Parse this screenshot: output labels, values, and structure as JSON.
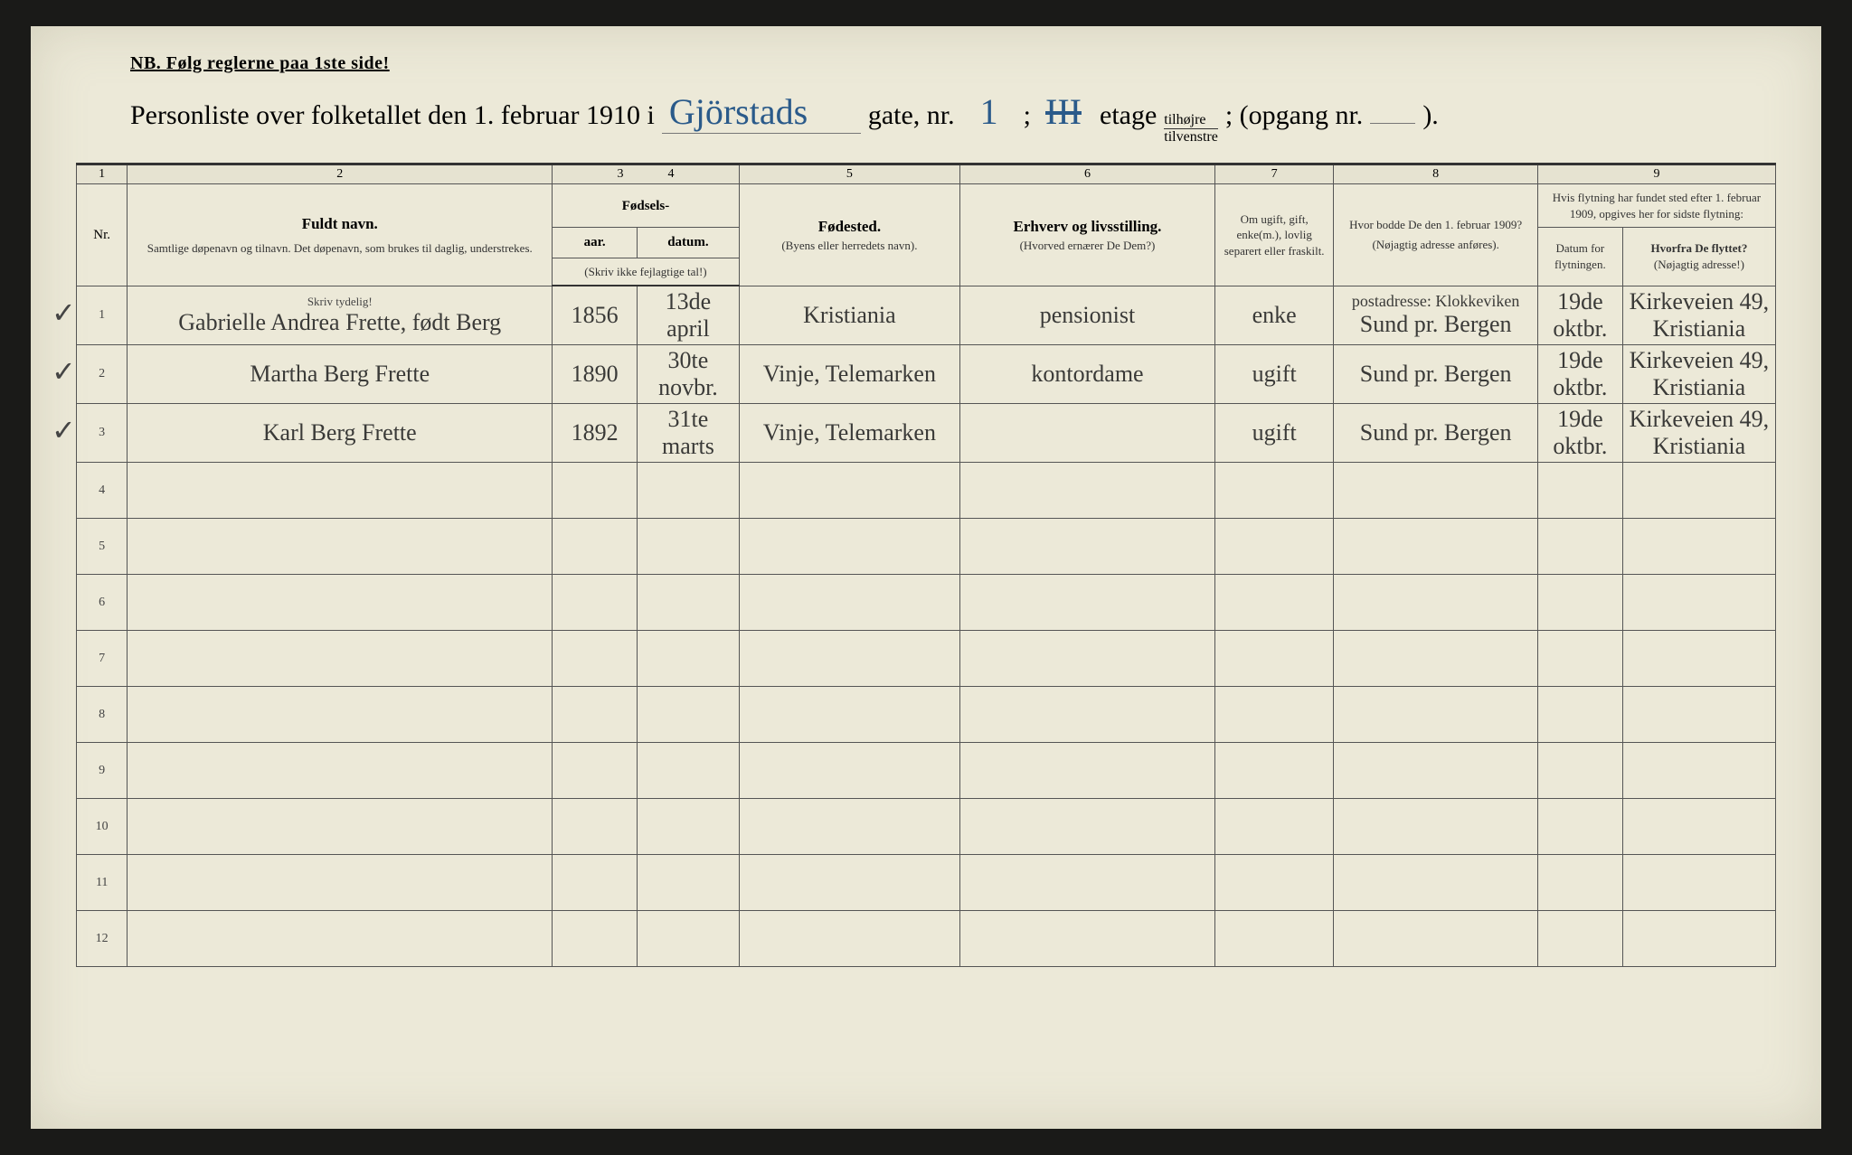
{
  "header": {
    "nb": "NB.  Følg reglerne paa 1ste side!",
    "title_prefix": "Personliste over folketallet den 1. februar 1910 i",
    "street": "Gjörstads",
    "gate_label": "gate, nr.",
    "nr": "1",
    "semicolon": ";",
    "etage_cross": "III",
    "etage_label": "etage",
    "tilhoire": "tilhøjre",
    "tilvenstre": "tilvenstre",
    "opgang": "; (opgang nr.",
    "close": ")."
  },
  "colnums": [
    "1",
    "2",
    "3",
    "4",
    "5",
    "6",
    "7",
    "8",
    "9"
  ],
  "columns": {
    "nr": "Nr.",
    "fuldt_navn": "Fuldt navn.",
    "fuldt_sub": "Samtlige døpenavn og tilnavn. Det døpenavn, som brukes til daglig, understrekes.",
    "fodsels": "Fødsels-",
    "aar": "aar.",
    "datum": "datum.",
    "skriv_ikke": "(Skriv ikke fejlagtige tal!)",
    "fodested": "Fødested.",
    "fodested_sub": "(Byens eller herredets navn).",
    "erhverv": "Erhverv og livsstilling.",
    "erhverv_sub": "(Hvorved ernærer De Dem?)",
    "om_ugift": "Om ugift, gift, enke(m.), lovlig separert eller fraskilt.",
    "hvor_bodde": "Hvor bodde De den 1. februar 1909?",
    "hvor_sub": "(Nøjagtig adresse anføres).",
    "hvis_flytning": "Hvis flytning har fundet sted efter 1. februar 1909, opgives her for sidste flytning:",
    "datum_flyt": "Datum for flytningen.",
    "hvorfra": "Hvorfra De flyttet?",
    "hvorfra_sub": "(Nøjagtig adresse!)",
    "skriv_tydelig": "Skriv tydelig!"
  },
  "rows": [
    {
      "nr": "1",
      "navn": "Gabrielle Andrea Frette, født Berg",
      "aar": "1856",
      "datum": "13de april",
      "fodested": "Kristiania",
      "erhverv": "pensionist",
      "ugift": "enke",
      "bodde_top": "postadresse: Klokkeviken",
      "bodde": "Sund pr. Bergen",
      "flyt_dat": "19de oktbr.",
      "hvorfra": "Kirkeveien 49, Kristiania"
    },
    {
      "nr": "2",
      "navn": "Martha Berg Frette",
      "aar": "1890",
      "datum": "30te novbr.",
      "fodested": "Vinje, Telemarken",
      "erhverv": "kontordame",
      "ugift": "ugift",
      "bodde_top": "",
      "bodde": "Sund pr. Bergen",
      "flyt_dat": "19de oktbr.",
      "hvorfra": "Kirkeveien 49, Kristiania"
    },
    {
      "nr": "3",
      "navn": "Karl Berg Frette",
      "aar": "1892",
      "datum": "31te marts",
      "fodested": "Vinje, Telemarken",
      "erhverv": "",
      "ugift": "ugift",
      "bodde_top": "",
      "bodde": "Sund pr. Bergen",
      "flyt_dat": "19de oktbr.",
      "hvorfra": "Kirkeveien 49, Kristiania"
    }
  ],
  "empty_rows": [
    "4",
    "5",
    "6",
    "7",
    "8",
    "9",
    "10",
    "11",
    "12"
  ],
  "style": {
    "paper_bg": "#ece9d8",
    "ink": "#333333",
    "hand_ink": "#2a5a8a",
    "script_ink": "#3a3a38",
    "col_widths_pct": [
      3,
      25,
      5,
      6,
      13,
      15,
      7,
      12,
      5,
      9
    ]
  }
}
